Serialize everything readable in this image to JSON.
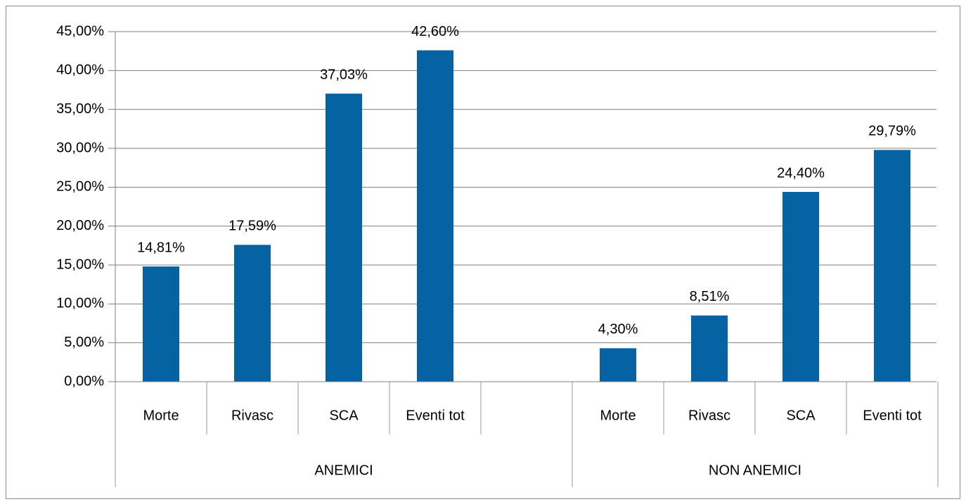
{
  "chart_data": {
    "type": "bar",
    "color": "#0563a4",
    "grid": true,
    "ylim": [
      0,
      45
    ],
    "yticks": [
      {
        "value": 0,
        "label": "0,00%"
      },
      {
        "value": 5,
        "label": "5,00%"
      },
      {
        "value": 10,
        "label": "10,00%"
      },
      {
        "value": 15,
        "label": "15,00%"
      },
      {
        "value": 20,
        "label": "20,00%"
      },
      {
        "value": 25,
        "label": "25,00%"
      },
      {
        "value": 30,
        "label": "30,00%"
      },
      {
        "value": 35,
        "label": "35,00%"
      },
      {
        "value": 40,
        "label": "40,00%"
      },
      {
        "value": 45,
        "label": "45,00%"
      }
    ],
    "groups": [
      {
        "name": "ANEMICI",
        "categories": [
          "Morte",
          "Rivasc",
          "SCA",
          "Eventi tot",
          null
        ],
        "values": [
          14.81,
          17.59,
          37.03,
          42.6,
          null
        ],
        "value_labels": [
          "14,81%",
          "17,59%",
          "37,03%",
          "42,60%",
          null
        ]
      },
      {
        "name": "NON ANEMICI",
        "categories": [
          "Morte",
          "Rivasc",
          "SCA",
          "Eventi tot"
        ],
        "values": [
          4.3,
          8.51,
          24.4,
          29.79
        ],
        "value_labels": [
          "4,30%",
          "8,51%",
          "24,40%",
          "29,79%"
        ]
      }
    ]
  }
}
